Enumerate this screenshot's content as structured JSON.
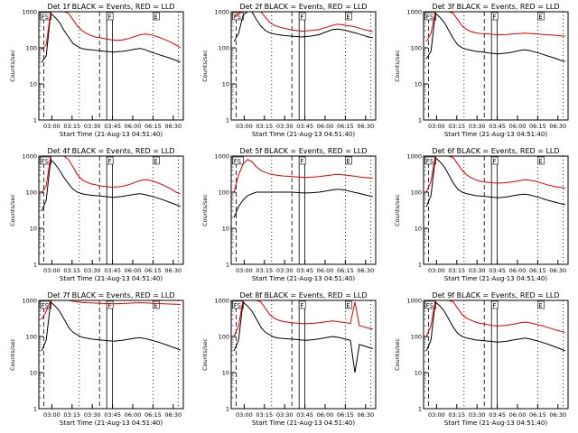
{
  "figure": {
    "background": "#ffffff",
    "axis_color": "#000000",
    "series_colors": {
      "events": "#000000",
      "lld": "#e00000"
    }
  },
  "chart_data": [
    {
      "type": "line",
      "title": "Det 1f BLACK = Events, RED = LLD",
      "xlabel": "Start Time (21-Aug-13 04:51:40)",
      "ylabel": "Counts/sec",
      "yscale": "log",
      "ylim": [
        1,
        1000
      ],
      "yticks": [
        1,
        10,
        100,
        1000
      ],
      "ytick_labels": [
        "1",
        "10",
        "100",
        "1000"
      ],
      "xticks": [
        "03:00",
        "03:15",
        "03:30",
        "03:45",
        "06:00",
        "06:15",
        "06:30"
      ],
      "grid": false,
      "markers": [
        "FS",
        "F",
        "E"
      ],
      "series": [
        {
          "color": "#000000",
          "values": [
            40,
            60,
            900,
            700,
            500,
            300,
            200,
            130,
            110,
            95,
            90,
            88,
            85,
            83,
            80,
            78,
            76,
            78,
            80,
            83,
            88,
            92,
            96,
            90,
            80,
            72,
            66,
            60,
            55,
            50,
            45,
            40
          ]
        },
        {
          "color": "#e00000",
          "values": [
            90,
            120,
            1000,
            1000,
            1000,
            1000,
            900,
            600,
            400,
            300,
            250,
            220,
            200,
            190,
            180,
            170,
            165,
            160,
            165,
            175,
            190,
            210,
            230,
            240,
            235,
            220,
            200,
            180,
            160,
            140,
            120,
            100
          ]
        }
      ]
    },
    {
      "type": "line",
      "title": "Det 2f BLACK = Events, RED = LLD",
      "xlabel": "Start Time (21-Aug-13 04:51:40)",
      "ylabel": "Counts/sec",
      "yscale": "log",
      "ylim": [
        1,
        1000
      ],
      "yticks": [
        1,
        10,
        100,
        1000
      ],
      "ytick_labels": [
        "1",
        "10",
        "100",
        "1000"
      ],
      "xticks": [
        "03:00",
        "03:15",
        "03:30",
        "03:45",
        "06:00",
        "06:15",
        "06:30"
      ],
      "grid": false,
      "markers": [
        "FS",
        "F",
        "E"
      ],
      "series": [
        {
          "color": "#000000",
          "values": [
            150,
            250,
            800,
            1000,
            1000,
            600,
            400,
            300,
            260,
            240,
            230,
            220,
            215,
            210,
            205,
            200,
            205,
            210,
            220,
            230,
            260,
            290,
            320,
            330,
            320,
            300,
            280,
            260,
            240,
            220,
            200,
            190
          ]
        },
        {
          "color": "#e00000",
          "values": [
            700,
            900,
            1000,
            1000,
            1000,
            1000,
            1000,
            700,
            500,
            420,
            380,
            350,
            330,
            310,
            300,
            290,
            295,
            300,
            310,
            320,
            350,
            380,
            420,
            450,
            440,
            420,
            400,
            380,
            350,
            320,
            300,
            280
          ]
        }
      ]
    },
    {
      "type": "line",
      "title": "Det 3f BLACK = Events, RED = LLD",
      "xlabel": "Start Time (21-Aug-13 04:51:40)",
      "ylabel": "Counts/sec",
      "yscale": "log",
      "ylim": [
        1,
        1000
      ],
      "yticks": [
        1,
        10,
        100,
        1000
      ],
      "ytick_labels": [
        "1",
        "10",
        "100",
        "1000"
      ],
      "xticks": [
        "03:00",
        "03:15",
        "03:30",
        "03:45",
        "06:00",
        "06:15",
        "06:30"
      ],
      "grid": false,
      "markers": [
        "FS",
        "F",
        "E"
      ],
      "series": [
        {
          "color": "#000000",
          "values": [
            50,
            80,
            900,
            700,
            500,
            300,
            180,
            120,
            100,
            90,
            85,
            80,
            78,
            75,
            72,
            70,
            68,
            70,
            72,
            75,
            80,
            85,
            88,
            84,
            78,
            72,
            66,
            60,
            55,
            50,
            45,
            42
          ]
        },
        {
          "color": "#e00000",
          "values": [
            150,
            250,
            1000,
            1000,
            1000,
            1000,
            900,
            600,
            400,
            320,
            280,
            260,
            250,
            245,
            240,
            235,
            230,
            232,
            235,
            240,
            245,
            250,
            255,
            250,
            245,
            240,
            235,
            230,
            225,
            220,
            215,
            210
          ]
        }
      ]
    },
    {
      "type": "line",
      "title": "Det 4f BLACK = Events, RED = LLD",
      "xlabel": "Start Time (21-Aug-13 04:51:40)",
      "ylabel": "Counts/sec",
      "yscale": "log",
      "ylim": [
        1,
        1000
      ],
      "yticks": [
        1,
        10,
        100,
        1000
      ],
      "ytick_labels": [
        "1",
        "10",
        "100",
        "1000"
      ],
      "xticks": [
        "03:00",
        "03:15",
        "03:30",
        "03:45",
        "06:00",
        "06:15",
        "06:30"
      ],
      "grid": false,
      "markers": [
        "FS",
        "F",
        "E"
      ],
      "series": [
        {
          "color": "#000000",
          "values": [
            30,
            60,
            800,
            600,
            400,
            250,
            170,
            120,
            100,
            90,
            85,
            82,
            80,
            78,
            76,
            74,
            72,
            74,
            76,
            80,
            84,
            88,
            90,
            86,
            80,
            74,
            68,
            62,
            56,
            50,
            45,
            40
          ]
        },
        {
          "color": "#e00000",
          "values": [
            90,
            150,
            1000,
            1000,
            1000,
            1000,
            800,
            500,
            300,
            220,
            190,
            170,
            160,
            150,
            145,
            140,
            138,
            140,
            145,
            155,
            170,
            190,
            210,
            220,
            215,
            200,
            180,
            160,
            140,
            120,
            100,
            90
          ]
        }
      ]
    },
    {
      "type": "line",
      "title": "Det 5f BLACK = Events, RED = LLD",
      "xlabel": "Start Time (21-Aug-13 04:51:40)",
      "ylabel": "Counts/sec",
      "yscale": "log",
      "ylim": [
        1,
        1000
      ],
      "yticks": [
        1,
        10,
        100,
        1000
      ],
      "ytick_labels": [
        "1",
        "10",
        "100",
        "1000"
      ],
      "xticks": [
        "03:00",
        "03:15",
        "03:30",
        "03:45",
        "06:00",
        "06:15",
        "06:30"
      ],
      "grid": false,
      "markers": [
        "FS",
        "F",
        "E"
      ],
      "series": [
        {
          "color": "#000000",
          "values": [
            20,
            40,
            60,
            80,
            90,
            100,
            100,
            100,
            100,
            100,
            100,
            100,
            100,
            100,
            98,
            96,
            95,
            96,
            98,
            100,
            105,
            110,
            115,
            120,
            118,
            112,
            105,
            98,
            92,
            86,
            80,
            75
          ]
        },
        {
          "color": "#e00000",
          "values": [
            100,
            300,
            600,
            800,
            700,
            500,
            400,
            350,
            320,
            300,
            290,
            280,
            275,
            270,
            265,
            260,
            255,
            260,
            265,
            270,
            280,
            290,
            300,
            310,
            305,
            295,
            285,
            275,
            265,
            255,
            250,
            245
          ]
        }
      ]
    },
    {
      "type": "line",
      "title": "Det 6f BLACK = Events, RED = LLD",
      "xlabel": "Start Time (21-Aug-13 04:51:40)",
      "ylabel": "Counts/sec",
      "yscale": "log",
      "ylim": [
        1,
        1000
      ],
      "yticks": [
        1,
        10,
        100,
        1000
      ],
      "ytick_labels": [
        "1",
        "10",
        "100",
        "1000"
      ],
      "xticks": [
        "03:00",
        "03:15",
        "03:30",
        "03:45",
        "06:00",
        "06:15",
        "06:30"
      ],
      "grid": false,
      "markers": [
        "FS",
        "F",
        "E"
      ],
      "series": [
        {
          "color": "#000000",
          "values": [
            40,
            80,
            900,
            700,
            500,
            300,
            180,
            120,
            100,
            90,
            85,
            80,
            78,
            76,
            74,
            72,
            70,
            72,
            74,
            78,
            82,
            86,
            88,
            84,
            78,
            72,
            66,
            60,
            56,
            52,
            48,
            45
          ]
        },
        {
          "color": "#e00000",
          "values": [
            100,
            200,
            1000,
            1000,
            1000,
            1000,
            900,
            600,
            400,
            300,
            250,
            220,
            200,
            190,
            185,
            180,
            178,
            180,
            185,
            190,
            200,
            210,
            220,
            215,
            205,
            190,
            175,
            160,
            150,
            140,
            135,
            130
          ]
        }
      ]
    },
    {
      "type": "line",
      "title": "Det 7f BLACK = Events, RED = LLD",
      "xlabel": "Start Time (21-Aug-13 04:51:40)",
      "ylabel": "Counts/sec",
      "yscale": "log",
      "ylim": [
        1,
        1000
      ],
      "yticks": [
        1,
        10,
        100,
        1000
      ],
      "ytick_labels": [
        "1",
        "10",
        "100",
        "1000"
      ],
      "xticks": [
        "03:00",
        "03:15",
        "03:30",
        "03:45",
        "06:00",
        "06:15",
        "06:30"
      ],
      "grid": false,
      "markers": [
        "FS",
        "F",
        "E"
      ],
      "series": [
        {
          "color": "#000000",
          "values": [
            40,
            80,
            900,
            700,
            500,
            300,
            180,
            130,
            110,
            95,
            90,
            85,
            82,
            80,
            78,
            76,
            74,
            76,
            78,
            82,
            86,
            90,
            92,
            88,
            82,
            76,
            70,
            64,
            58,
            52,
            47,
            42
          ]
        },
        {
          "color": "#e00000",
          "values": [
            300,
            500,
            1000,
            1000,
            1000,
            1000,
            1000,
            950,
            900,
            880,
            860,
            850,
            840,
            830,
            820,
            815,
            810,
            815,
            820,
            830,
            840,
            850,
            860,
            850,
            840,
            830,
            820,
            810,
            800,
            790,
            780,
            770
          ]
        }
      ]
    },
    {
      "type": "line",
      "title": "Det 8f BLACK = Events, RED = LLD",
      "xlabel": "Start Time (21-Aug-13 04:51:40)",
      "ylabel": "Counts/sec",
      "yscale": "log",
      "ylim": [
        1,
        1000
      ],
      "yticks": [
        1,
        10,
        100,
        1000
      ],
      "ytick_labels": [
        "1",
        "10",
        "100",
        "1000"
      ],
      "xticks": [
        "03:00",
        "03:15",
        "03:30",
        "03:45",
        "06:00",
        "06:15",
        "06:30"
      ],
      "grid": false,
      "markers": [
        "FS",
        "F",
        "E"
      ],
      "series": [
        {
          "color": "#000000",
          "values": [
            40,
            80,
            900,
            700,
            500,
            300,
            180,
            130,
            110,
            95,
            90,
            88,
            86,
            84,
            82,
            80,
            78,
            80,
            82,
            86,
            90,
            95,
            100,
            96,
            90,
            84,
            78,
            10,
            60,
            55,
            50,
            46
          ]
        },
        {
          "color": "#e00000",
          "values": [
            100,
            200,
            1000,
            1000,
            1000,
            1000,
            900,
            600,
            400,
            320,
            280,
            260,
            250,
            240,
            235,
            230,
            225,
            230,
            235,
            240,
            250,
            260,
            270,
            260,
            250,
            240,
            230,
            900,
            200,
            185,
            170,
            160
          ]
        }
      ]
    },
    {
      "type": "line",
      "title": "Det 9f BLACK = Events, RED = LLD",
      "xlabel": "Start Time (21-Aug-13 04:51:40)",
      "ylabel": "Counts/sec",
      "yscale": "log",
      "ylim": [
        1,
        1000
      ],
      "yticks": [
        1,
        10,
        100,
        1000
      ],
      "ytick_labels": [
        "1",
        "10",
        "100",
        "1000"
      ],
      "xticks": [
        "03:00",
        "03:15",
        "03:30",
        "03:45",
        "06:00",
        "06:15",
        "06:30"
      ],
      "grid": false,
      "markers": [
        "FS",
        "F",
        "E"
      ],
      "series": [
        {
          "color": "#000000",
          "values": [
            40,
            80,
            900,
            700,
            500,
            300,
            180,
            120,
            100,
            90,
            85,
            80,
            78,
            76,
            74,
            72,
            70,
            72,
            74,
            78,
            82,
            86,
            90,
            86,
            80,
            74,
            68,
            62,
            56,
            50,
            45,
            40
          ]
        },
        {
          "color": "#e00000",
          "values": [
            100,
            200,
            1000,
            1000,
            1000,
            1000,
            900,
            600,
            400,
            320,
            280,
            250,
            230,
            220,
            210,
            200,
            195,
            200,
            205,
            215,
            225,
            240,
            250,
            240,
            225,
            210,
            195,
            180,
            165,
            150,
            140,
            130
          ]
        }
      ]
    }
  ]
}
